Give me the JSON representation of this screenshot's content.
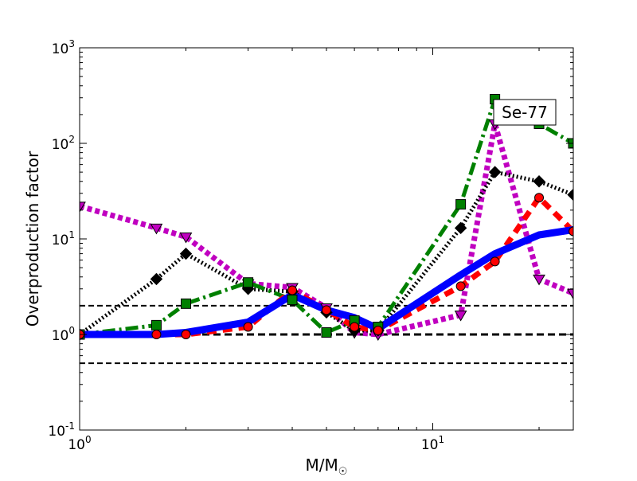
{
  "chart_data": {
    "type": "line",
    "annotation": "Se-77",
    "xlabel": {
      "main": "M/M",
      "sub": "☉"
    },
    "ylabel": "Overproduction factor",
    "xscale": "log",
    "yscale": "log",
    "xlim": [
      1,
      25
    ],
    "ylim": [
      0.1,
      1000
    ],
    "grid": false,
    "x_ticks": [
      {
        "value": 1,
        "base": "10",
        "exp": "0"
      },
      {
        "value": 10,
        "base": "10",
        "exp": "1"
      }
    ],
    "y_ticks": [
      {
        "value": 0.1,
        "base": "10",
        "exp": "-1"
      },
      {
        "value": 1,
        "base": "10",
        "exp": "0"
      },
      {
        "value": 10,
        "base": "10",
        "exp": "1"
      },
      {
        "value": 100,
        "base": "10",
        "exp": "2"
      },
      {
        "value": 1000,
        "base": "10",
        "exp": "3"
      }
    ],
    "reference_lines": [
      {
        "y": 2,
        "style": "dashed",
        "color": "#000000"
      },
      {
        "y": 1,
        "style": "dashed-bold",
        "color": "#000000"
      },
      {
        "y": 0.5,
        "style": "dashed",
        "color": "#000000"
      }
    ],
    "series": [
      {
        "color": "#0000ff",
        "style": "solid",
        "marker": "none",
        "x": [
          1,
          1.65,
          2,
          3,
          4,
          5,
          6,
          7,
          12,
          15,
          20,
          25
        ],
        "y": [
          1.0,
          1.0,
          1.05,
          1.35,
          2.6,
          1.8,
          1.5,
          1.15,
          4.2,
          7.0,
          11.0,
          12.5
        ]
      },
      {
        "color": "#ff0000",
        "style": "dashed",
        "marker": "circle",
        "x": [
          1,
          1.65,
          2,
          3,
          4,
          5,
          6,
          7,
          12,
          15,
          20,
          25
        ],
        "y": [
          1.0,
          1.0,
          1.0,
          1.2,
          2.9,
          1.8,
          1.2,
          1.1,
          3.2,
          5.8,
          27,
          12
        ]
      },
      {
        "color": "#008000",
        "style": "dashdot",
        "marker": "square",
        "x": [
          1,
          1.65,
          2,
          3,
          4,
          5,
          6,
          7,
          12,
          15,
          20,
          25
        ],
        "y": [
          1.0,
          1.25,
          2.1,
          3.5,
          2.3,
          1.05,
          1.4,
          1.2,
          23,
          290,
          160,
          100
        ]
      },
      {
        "color": "#000000",
        "style": "dotted",
        "marker": "diamond",
        "x": [
          1,
          1.65,
          2,
          3,
          4,
          5,
          6,
          7,
          12,
          15,
          20,
          25
        ],
        "y": [
          1.0,
          3.8,
          7.0,
          3.0,
          2.8,
          1.7,
          1.1,
          1.1,
          13,
          50,
          40,
          29
        ]
      },
      {
        "color": "#c000c0",
        "style": "dotted",
        "marker": "triangle-down",
        "x": [
          1,
          1.65,
          2,
          3,
          4,
          5,
          6,
          7,
          12,
          15,
          20,
          25
        ],
        "y": [
          22,
          13,
          10.5,
          3.4,
          3.1,
          1.9,
          1.05,
          1.0,
          1.6,
          160,
          3.8,
          2.7
        ]
      }
    ]
  }
}
